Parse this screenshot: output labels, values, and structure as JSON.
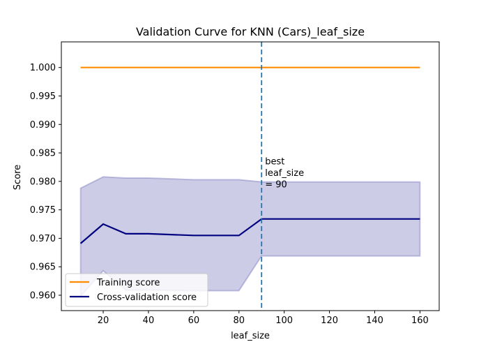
{
  "chart_data": {
    "type": "line",
    "title": "Validation Curve for KNN (Cars)_leaf_size",
    "xlabel": "leaf_size",
    "ylabel": "Score",
    "x": [
      10,
      20,
      30,
      40,
      60,
      80,
      90,
      100,
      160
    ],
    "xlim": [
      1.5,
      168.5
    ],
    "ylim": [
      0.9573,
      1.0045
    ],
    "xticks": [
      20,
      40,
      60,
      80,
      100,
      120,
      140,
      160
    ],
    "yticks": [
      0.96,
      0.965,
      0.97,
      0.975,
      0.98,
      0.985,
      0.99,
      0.995,
      1.0
    ],
    "series": [
      {
        "name": "Training score",
        "color": "#ff8c00",
        "values": [
          1.0,
          1.0,
          1.0,
          1.0,
          1.0,
          1.0,
          1.0,
          1.0,
          1.0
        ]
      },
      {
        "name": "Cross-validation score",
        "color": "#000080",
        "values": [
          0.9691,
          0.9725,
          0.9708,
          0.9708,
          0.9705,
          0.9705,
          0.9734,
          0.9734,
          0.9734
        ],
        "band_upper": [
          0.9788,
          0.9808,
          0.9806,
          0.9806,
          0.9803,
          0.9803,
          0.9799,
          0.9799,
          0.9799
        ],
        "band_lower": [
          0.9598,
          0.9643,
          0.9609,
          0.9609,
          0.9608,
          0.9608,
          0.9669,
          0.9669,
          0.9669
        ],
        "band_color": "#000080"
      }
    ],
    "vline": {
      "x": 90,
      "color": "#1f77b4",
      "style": "dashed"
    },
    "annotations": [
      {
        "x": 90,
        "y": 0.983,
        "lines": [
          "best",
          "leaf_size",
          "= 90"
        ]
      }
    ],
    "legend": {
      "placement": "lower-left"
    },
    "grid": false
  }
}
